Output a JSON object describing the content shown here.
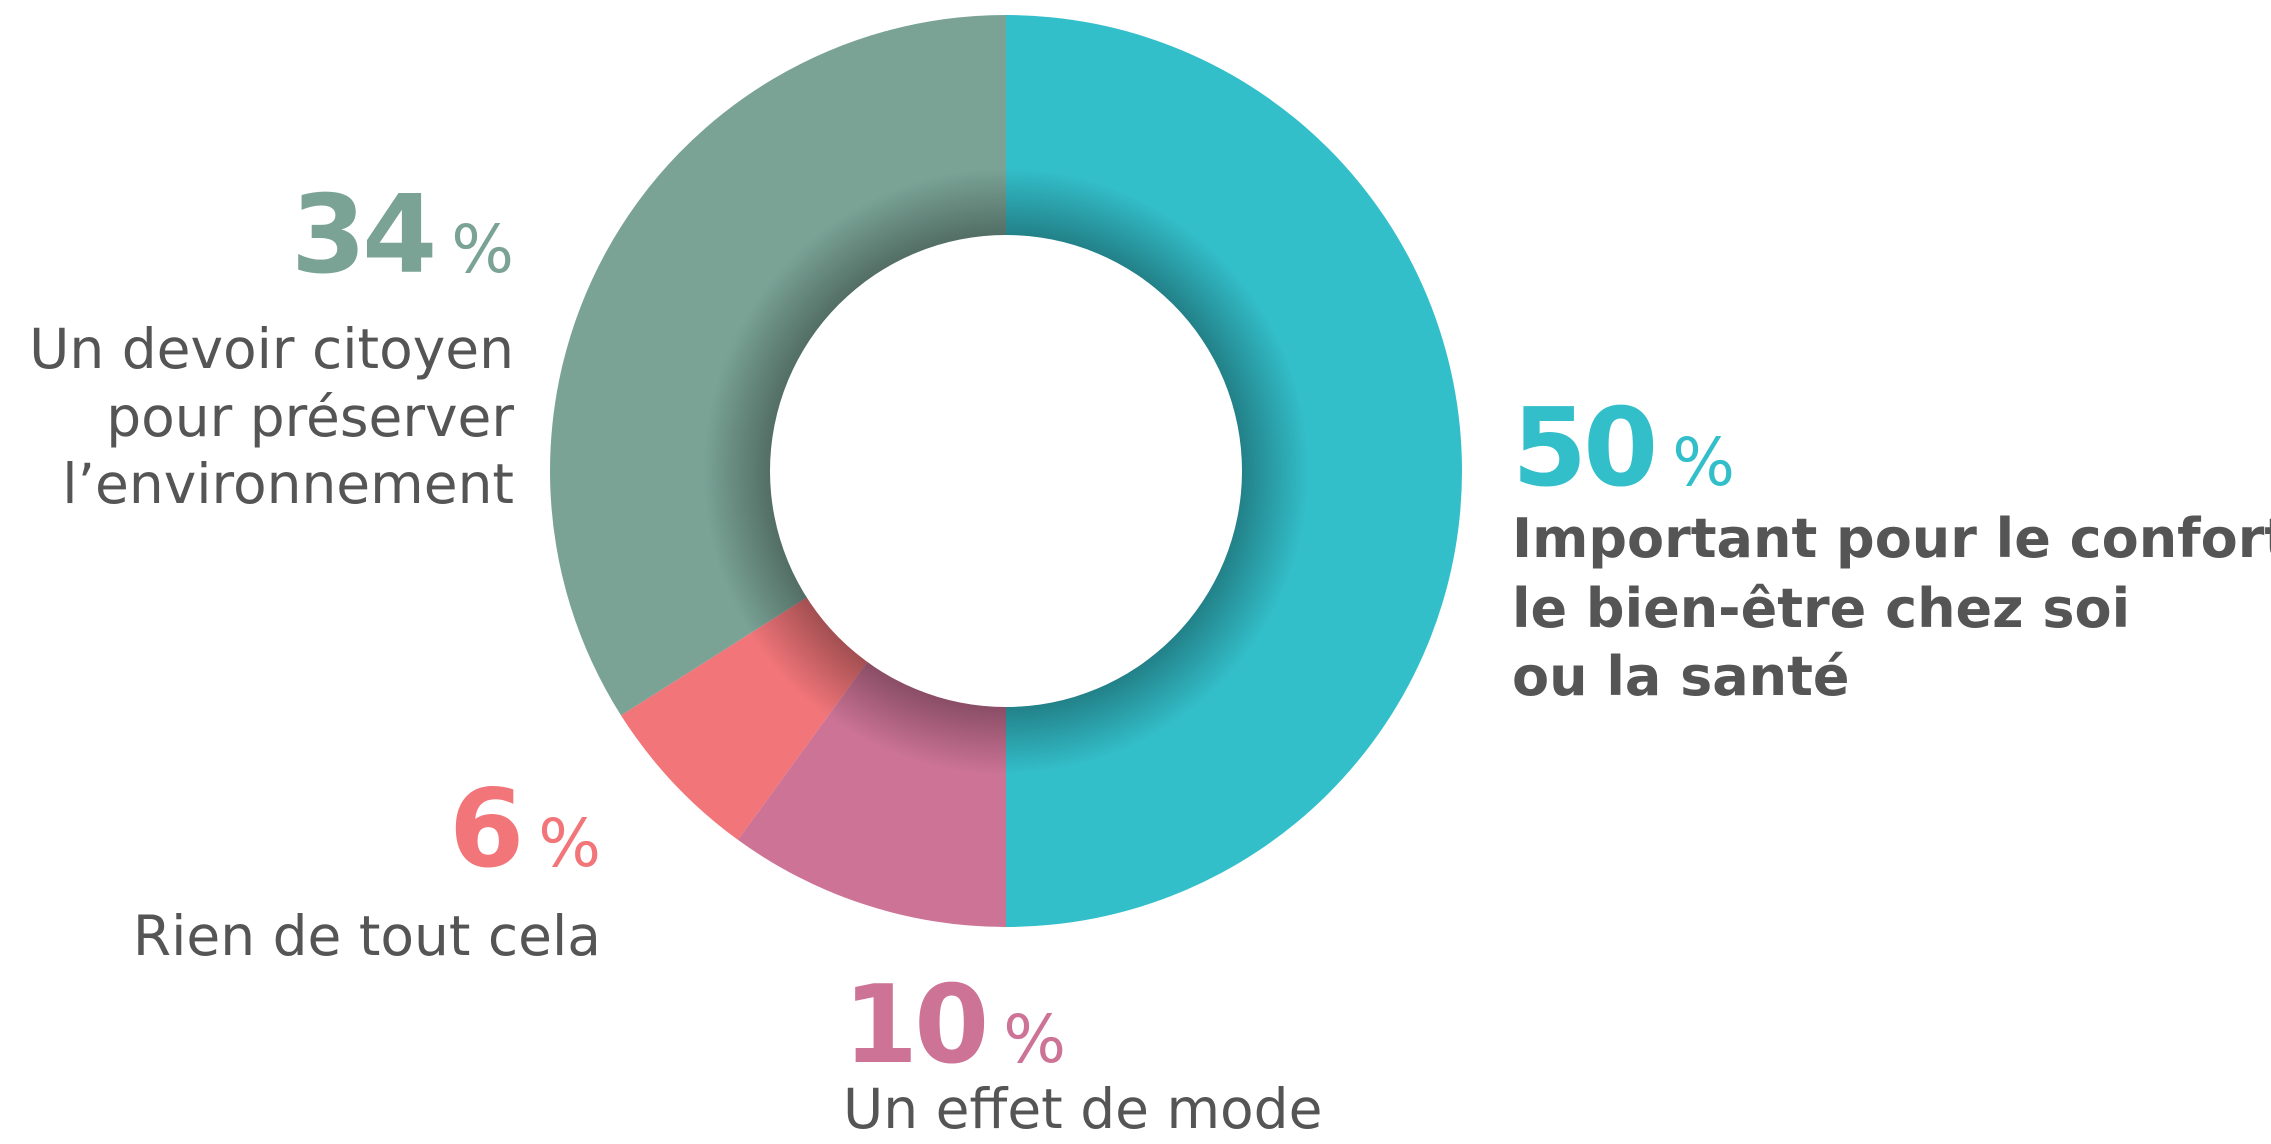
{
  "chart_data": {
    "type": "donut",
    "unit": "%",
    "categories": [
      [
        "Important pour le confort,",
        "le bien-être chez soi",
        "ou la santé"
      ],
      [
        "Un effet de mode"
      ],
      [
        "Rien de tout cela"
      ],
      [
        "Un devoir citoyen",
        "pour préserver",
        "l’environnement"
      ]
    ],
    "values": [
      50,
      10,
      6,
      34
    ],
    "colors": [
      "#33bfca",
      "#cc7396",
      "#f17579",
      "#7aa396"
    ]
  }
}
